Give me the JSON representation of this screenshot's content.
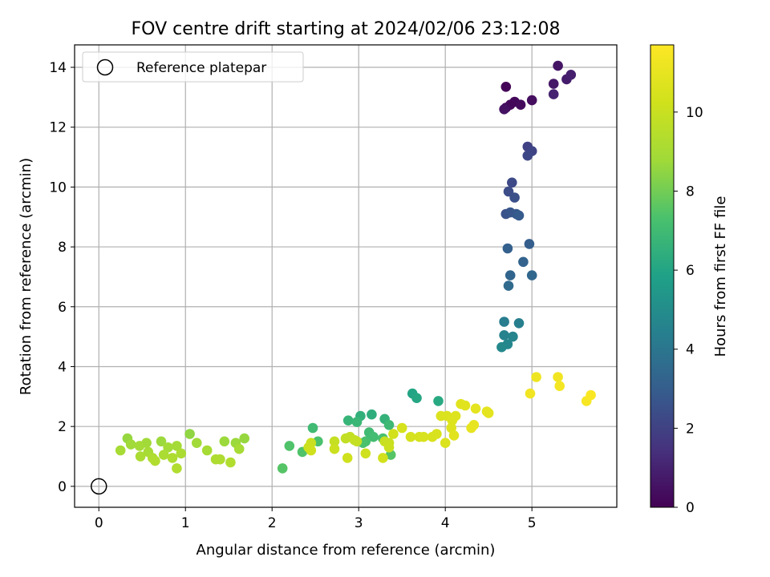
{
  "chart_data": {
    "type": "scatter",
    "title": "FOV centre drift starting at 2024/02/06 23:12:08",
    "xlabel": "Angular distance from reference (arcmin)",
    "ylabel": "Rotation from reference (arcmin)",
    "xlim": [
      -0.28,
      5.98
    ],
    "ylim": [
      -0.7,
      14.75
    ],
    "xticks": [
      0,
      1,
      2,
      3,
      4,
      5
    ],
    "yticks": [
      0,
      2,
      4,
      6,
      8,
      10,
      12,
      14
    ],
    "grid": true,
    "legend": {
      "placement": "upper-left",
      "entries": [
        "Reference platepar"
      ]
    },
    "reference_point": {
      "x": 0,
      "y": 0
    },
    "colorbar": {
      "label": "Hours from first FF file",
      "range": [
        0,
        11.7
      ],
      "ticks": [
        0,
        2,
        4,
        6,
        8,
        10
      ],
      "colormap": "viridis"
    },
    "points": [
      {
        "x": 4.7,
        "y": 13.35,
        "h": 0.1
      },
      {
        "x": 4.75,
        "y": 12.75,
        "h": 0.2
      },
      {
        "x": 4.8,
        "y": 12.85,
        "h": 0.2
      },
      {
        "x": 4.7,
        "y": 12.65,
        "h": 0.3
      },
      {
        "x": 4.87,
        "y": 12.75,
        "h": 0.3
      },
      {
        "x": 5.0,
        "y": 12.9,
        "h": 0.4
      },
      {
        "x": 4.68,
        "y": 12.6,
        "h": 0.5
      },
      {
        "x": 5.3,
        "y": 14.05,
        "h": 0.6
      },
      {
        "x": 5.25,
        "y": 13.45,
        "h": 0.7
      },
      {
        "x": 5.4,
        "y": 13.6,
        "h": 0.8
      },
      {
        "x": 5.45,
        "y": 13.75,
        "h": 0.9
      },
      {
        "x": 5.25,
        "y": 13.1,
        "h": 1.0
      },
      {
        "x": 4.95,
        "y": 11.35,
        "h": 2.0
      },
      {
        "x": 5.0,
        "y": 11.2,
        "h": 2.1
      },
      {
        "x": 4.95,
        "y": 11.05,
        "h": 2.2
      },
      {
        "x": 4.77,
        "y": 10.15,
        "h": 2.3
      },
      {
        "x": 4.73,
        "y": 9.85,
        "h": 2.4
      },
      {
        "x": 4.8,
        "y": 9.65,
        "h": 2.5
      },
      {
        "x": 4.7,
        "y": 9.1,
        "h": 2.6
      },
      {
        "x": 4.75,
        "y": 9.15,
        "h": 2.7
      },
      {
        "x": 4.82,
        "y": 9.1,
        "h": 2.8
      },
      {
        "x": 4.85,
        "y": 9.05,
        "h": 2.9
      },
      {
        "x": 4.97,
        "y": 8.1,
        "h": 3.0
      },
      {
        "x": 4.72,
        "y": 7.95,
        "h": 3.1
      },
      {
        "x": 4.9,
        "y": 7.5,
        "h": 3.2
      },
      {
        "x": 4.75,
        "y": 7.05,
        "h": 3.3
      },
      {
        "x": 5.0,
        "y": 7.05,
        "h": 3.4
      },
      {
        "x": 4.73,
        "y": 6.7,
        "h": 3.5
      },
      {
        "x": 4.68,
        "y": 5.5,
        "h": 4.3
      },
      {
        "x": 4.85,
        "y": 5.45,
        "h": 4.4
      },
      {
        "x": 4.68,
        "y": 5.05,
        "h": 4.5
      },
      {
        "x": 4.78,
        "y": 5.0,
        "h": 4.6
      },
      {
        "x": 4.72,
        "y": 4.75,
        "h": 4.7
      },
      {
        "x": 4.65,
        "y": 4.65,
        "h": 4.8
      },
      {
        "x": 3.62,
        "y": 3.1,
        "h": 6.0
      },
      {
        "x": 3.67,
        "y": 2.95,
        "h": 6.1
      },
      {
        "x": 3.92,
        "y": 2.85,
        "h": 6.2
      },
      {
        "x": 3.15,
        "y": 2.4,
        "h": 6.4
      },
      {
        "x": 3.02,
        "y": 2.35,
        "h": 6.5
      },
      {
        "x": 3.3,
        "y": 2.25,
        "h": 6.6
      },
      {
        "x": 2.88,
        "y": 2.2,
        "h": 6.7
      },
      {
        "x": 2.98,
        "y": 2.15,
        "h": 6.8
      },
      {
        "x": 3.35,
        "y": 2.05,
        "h": 6.9
      },
      {
        "x": 2.47,
        "y": 1.95,
        "h": 7.0
      },
      {
        "x": 3.12,
        "y": 1.8,
        "h": 7.0
      },
      {
        "x": 3.17,
        "y": 1.65,
        "h": 7.1
      },
      {
        "x": 3.28,
        "y": 1.6,
        "h": 7.2
      },
      {
        "x": 3.08,
        "y": 1.5,
        "h": 7.2
      },
      {
        "x": 2.53,
        "y": 1.5,
        "h": 7.3
      },
      {
        "x": 3.05,
        "y": 1.45,
        "h": 7.3
      },
      {
        "x": 2.2,
        "y": 1.35,
        "h": 7.4
      },
      {
        "x": 2.35,
        "y": 1.15,
        "h": 7.4
      },
      {
        "x": 3.37,
        "y": 1.05,
        "h": 7.5
      },
      {
        "x": 2.12,
        "y": 0.6,
        "h": 7.5
      },
      {
        "x": 1.05,
        "y": 1.75,
        "h": 8.5
      },
      {
        "x": 0.33,
        "y": 1.6,
        "h": 8.6
      },
      {
        "x": 1.68,
        "y": 1.6,
        "h": 8.6
      },
      {
        "x": 0.72,
        "y": 1.5,
        "h": 8.7
      },
      {
        "x": 1.45,
        "y": 1.5,
        "h": 8.7
      },
      {
        "x": 1.58,
        "y": 1.45,
        "h": 8.7
      },
      {
        "x": 0.55,
        "y": 1.45,
        "h": 8.8
      },
      {
        "x": 1.13,
        "y": 1.45,
        "h": 8.8
      },
      {
        "x": 0.37,
        "y": 1.4,
        "h": 8.8
      },
      {
        "x": 0.47,
        "y": 1.35,
        "h": 8.9
      },
      {
        "x": 0.9,
        "y": 1.35,
        "h": 8.9
      },
      {
        "x": 0.8,
        "y": 1.3,
        "h": 8.9
      },
      {
        "x": 1.62,
        "y": 1.25,
        "h": 9.0
      },
      {
        "x": 0.25,
        "y": 1.2,
        "h": 9.0
      },
      {
        "x": 1.25,
        "y": 1.2,
        "h": 9.0
      },
      {
        "x": 0.57,
        "y": 1.15,
        "h": 9.0
      },
      {
        "x": 0.95,
        "y": 1.1,
        "h": 9.1
      },
      {
        "x": 0.75,
        "y": 1.05,
        "h": 9.1
      },
      {
        "x": 0.48,
        "y": 1.0,
        "h": 9.1
      },
      {
        "x": 0.62,
        "y": 0.95,
        "h": 9.2
      },
      {
        "x": 0.85,
        "y": 0.95,
        "h": 9.2
      },
      {
        "x": 1.35,
        "y": 0.9,
        "h": 9.2
      },
      {
        "x": 1.4,
        "y": 0.9,
        "h": 9.2
      },
      {
        "x": 0.65,
        "y": 0.85,
        "h": 9.3
      },
      {
        "x": 1.52,
        "y": 0.8,
        "h": 9.3
      },
      {
        "x": 0.9,
        "y": 0.6,
        "h": 9.3
      },
      {
        "x": 2.85,
        "y": 1.6,
        "h": 9.8
      },
      {
        "x": 2.9,
        "y": 1.65,
        "h": 9.8
      },
      {
        "x": 2.95,
        "y": 1.55,
        "h": 9.9
      },
      {
        "x": 2.72,
        "y": 1.5,
        "h": 9.9
      },
      {
        "x": 2.98,
        "y": 1.5,
        "h": 9.9
      },
      {
        "x": 2.45,
        "y": 1.45,
        "h": 10.0
      },
      {
        "x": 3.3,
        "y": 1.5,
        "h": 10.0
      },
      {
        "x": 3.35,
        "y": 1.45,
        "h": 10.0
      },
      {
        "x": 2.42,
        "y": 1.3,
        "h": 10.1
      },
      {
        "x": 2.72,
        "y": 1.25,
        "h": 10.1
      },
      {
        "x": 3.35,
        "y": 1.3,
        "h": 10.1
      },
      {
        "x": 2.45,
        "y": 1.2,
        "h": 10.2
      },
      {
        "x": 3.08,
        "y": 1.1,
        "h": 10.2
      },
      {
        "x": 2.87,
        "y": 0.95,
        "h": 10.2
      },
      {
        "x": 3.28,
        "y": 0.95,
        "h": 10.3
      },
      {
        "x": 3.4,
        "y": 1.75,
        "h": 10.3
      },
      {
        "x": 3.5,
        "y": 1.95,
        "h": 10.4
      },
      {
        "x": 3.6,
        "y": 1.65,
        "h": 10.4
      },
      {
        "x": 3.7,
        "y": 1.65,
        "h": 10.4
      },
      {
        "x": 3.75,
        "y": 1.65,
        "h": 10.5
      },
      {
        "x": 3.85,
        "y": 1.65,
        "h": 10.5
      },
      {
        "x": 3.9,
        "y": 1.75,
        "h": 10.5
      },
      {
        "x": 4.0,
        "y": 1.45,
        "h": 10.6
      },
      {
        "x": 3.95,
        "y": 2.35,
        "h": 10.6
      },
      {
        "x": 4.02,
        "y": 2.35,
        "h": 10.6
      },
      {
        "x": 4.08,
        "y": 2.2,
        "h": 10.7
      },
      {
        "x": 4.12,
        "y": 2.35,
        "h": 10.7
      },
      {
        "x": 4.07,
        "y": 1.95,
        "h": 10.7
      },
      {
        "x": 4.1,
        "y": 1.7,
        "h": 10.8
      },
      {
        "x": 4.18,
        "y": 2.75,
        "h": 10.8
      },
      {
        "x": 4.23,
        "y": 2.7,
        "h": 10.8
      },
      {
        "x": 4.35,
        "y": 2.6,
        "h": 10.9
      },
      {
        "x": 4.48,
        "y": 2.5,
        "h": 10.9
      },
      {
        "x": 4.5,
        "y": 2.45,
        "h": 10.9
      },
      {
        "x": 4.3,
        "y": 1.95,
        "h": 11.0
      },
      {
        "x": 4.33,
        "y": 2.05,
        "h": 11.0
      },
      {
        "x": 5.05,
        "y": 3.65,
        "h": 11.2
      },
      {
        "x": 5.3,
        "y": 3.65,
        "h": 11.3
      },
      {
        "x": 4.98,
        "y": 3.1,
        "h": 11.3
      },
      {
        "x": 5.32,
        "y": 3.35,
        "h": 11.4
      },
      {
        "x": 5.63,
        "y": 2.85,
        "h": 11.5
      },
      {
        "x": 5.68,
        "y": 3.05,
        "h": 11.6
      }
    ]
  }
}
